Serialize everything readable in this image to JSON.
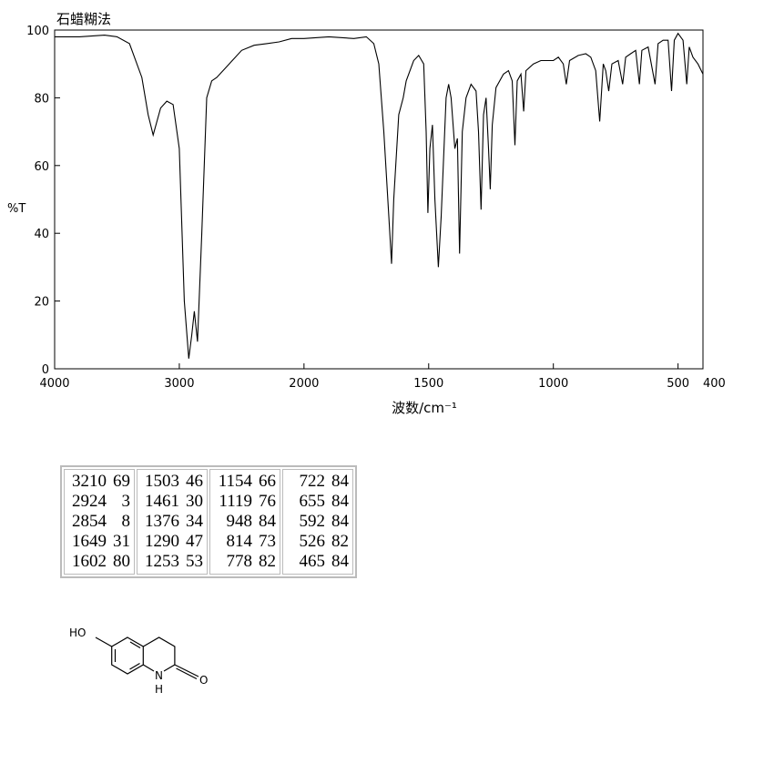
{
  "chart_data": {
    "type": "line",
    "title": "石蜡糊法",
    "x_label": "波数/cm⁻¹",
    "y_label": "%T",
    "xlim": [
      4000,
      400
    ],
    "x_scale_break": 2000,
    "ylim": [
      0,
      100
    ],
    "xticks": [
      4000,
      3000,
      2000,
      1500,
      1000,
      500,
      400
    ],
    "yticks": [
      0,
      20,
      40,
      60,
      80,
      100
    ],
    "series": [
      {
        "color": "#000000",
        "x": [
          4000,
          3800,
          3600,
          3500,
          3400,
          3300,
          3250,
          3210,
          3150,
          3100,
          3050,
          3000,
          2960,
          2924,
          2900,
          2880,
          2854,
          2820,
          2780,
          2740,
          2700,
          2600,
          2500,
          2400,
          2300,
          2200,
          2100,
          2000,
          1900,
          1800,
          1750,
          1720,
          1700,
          1680,
          1660,
          1649,
          1640,
          1620,
          1602,
          1590,
          1560,
          1540,
          1520,
          1510,
          1503,
          1495,
          1485,
          1475,
          1461,
          1450,
          1430,
          1420,
          1410,
          1395,
          1385,
          1376,
          1365,
          1350,
          1330,
          1310,
          1300,
          1290,
          1280,
          1270,
          1260,
          1253,
          1245,
          1230,
          1200,
          1180,
          1165,
          1154,
          1145,
          1130,
          1119,
          1110,
          1080,
          1050,
          1000,
          980,
          960,
          948,
          935,
          900,
          870,
          850,
          830,
          814,
          800,
          790,
          778,
          765,
          740,
          722,
          710,
          690,
          670,
          655,
          645,
          620,
          592,
          580,
          560,
          540,
          526,
          515,
          500,
          480,
          465,
          455,
          440,
          420,
          400
        ],
        "values": [
          98,
          98,
          98.5,
          98,
          96,
          86,
          75,
          69,
          77,
          79,
          78,
          65,
          20,
          3,
          10,
          17,
          8,
          40,
          80,
          85,
          86,
          90,
          94,
          95.5,
          96,
          96.5,
          97.5,
          97.5,
          98,
          97.5,
          98,
          96,
          90,
          70,
          45,
          31,
          50,
          75,
          80,
          85,
          91,
          92.5,
          90,
          70,
          46,
          65,
          72,
          50,
          30,
          45,
          80,
          84,
          80,
          65,
          68,
          34,
          70,
          80,
          84,
          82,
          70,
          47,
          75,
          80,
          65,
          53,
          72,
          83,
          87,
          88,
          85,
          66,
          85,
          87,
          76,
          88,
          90,
          91,
          91,
          92,
          90,
          84,
          91,
          92.5,
          93,
          92,
          88,
          73,
          90,
          88,
          82,
          90,
          91,
          84,
          92,
          93,
          94,
          84,
          94,
          95,
          84,
          96,
          97,
          97,
          82,
          97,
          99,
          97,
          84,
          95,
          92,
          90,
          87
        ]
      }
    ]
  },
  "table": {
    "columns": [
      [
        [
          "3210",
          "69"
        ],
        [
          "2924",
          "3"
        ],
        [
          "2854",
          "8"
        ],
        [
          "1649",
          "31"
        ],
        [
          "1602",
          "80"
        ]
      ],
      [
        [
          "1503",
          "46"
        ],
        [
          "1461",
          "30"
        ],
        [
          "1376",
          "34"
        ],
        [
          "1290",
          "47"
        ],
        [
          "1253",
          "53"
        ]
      ],
      [
        [
          "1154",
          "66"
        ],
        [
          "1119",
          "76"
        ],
        [
          "948",
          "84"
        ],
        [
          "814",
          "73"
        ],
        [
          "778",
          "82"
        ]
      ],
      [
        [
          "722",
          "84"
        ],
        [
          "655",
          "84"
        ],
        [
          "592",
          "84"
        ],
        [
          "526",
          "82"
        ],
        [
          "465",
          "84"
        ]
      ]
    ]
  },
  "structure": {
    "labels": [
      "HO",
      "N",
      "H",
      "O"
    ]
  }
}
